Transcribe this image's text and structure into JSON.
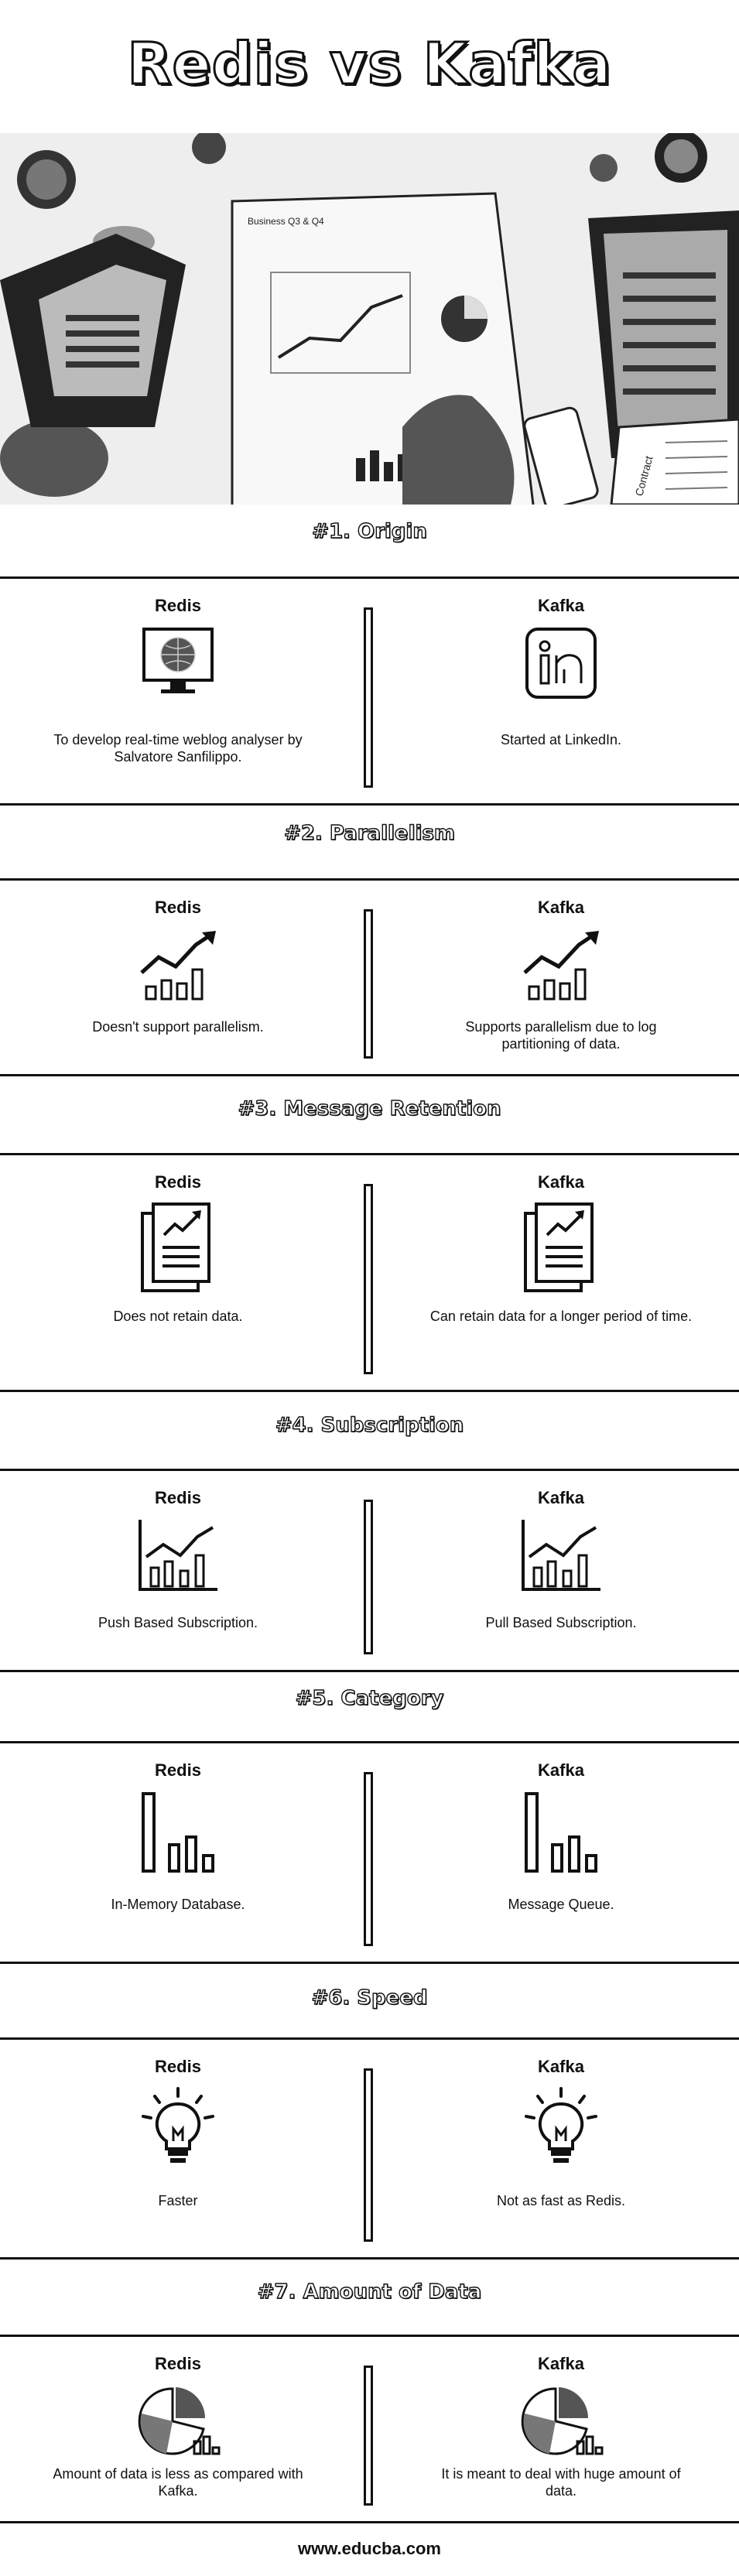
{
  "title": "Redis vs Kafka",
  "footer": "www.educba.com",
  "columns": {
    "left": "Redis",
    "right": "Kafka"
  },
  "photo_text": {
    "report": "Business Q3 & Q4",
    "contract": "Contract"
  },
  "sections": [
    {
      "heading": "#1. Origin",
      "left_icon": "globe-monitor-icon",
      "right_icon": "linkedin-logo-icon",
      "left": "To develop real-time weblog analyser by Salvatore Sanfilippo.",
      "right": "Started at LinkedIn."
    },
    {
      "heading": "#2. Parallelism",
      "left_icon": "bar-growth-arrow-icon",
      "right_icon": "bar-growth-arrow-icon",
      "left": "Doesn't support parallelism.",
      "right": "Supports parallelism due to log partitioning of data."
    },
    {
      "heading": "#3. Message Retention",
      "left_icon": "document-chart-icon",
      "right_icon": "document-chart-icon",
      "left": "Does not retain data.",
      "right": "Can retain data for a longer period of time."
    },
    {
      "heading": "#4. Subscription",
      "left_icon": "axis-chart-icon",
      "right_icon": "axis-chart-icon",
      "left": "Push Based Subscription.",
      "right": "Pull Based Subscription."
    },
    {
      "heading": "#5. Category",
      "left_icon": "descending-bars-icon",
      "right_icon": "descending-bars-icon",
      "left": "In-Memory Database.",
      "right": "Message Queue."
    },
    {
      "heading": "#6. Speed",
      "left_icon": "lightbulb-icon",
      "right_icon": "lightbulb-icon",
      "left": "Faster",
      "right": "Not as fast as Redis."
    },
    {
      "heading": "#7. Amount of Data",
      "left_icon": "pie-chart-icon",
      "right_icon": "pie-chart-icon",
      "left": "Amount of data is less as compared with Kafka.",
      "right": "It is meant to deal with huge amount of data."
    }
  ]
}
